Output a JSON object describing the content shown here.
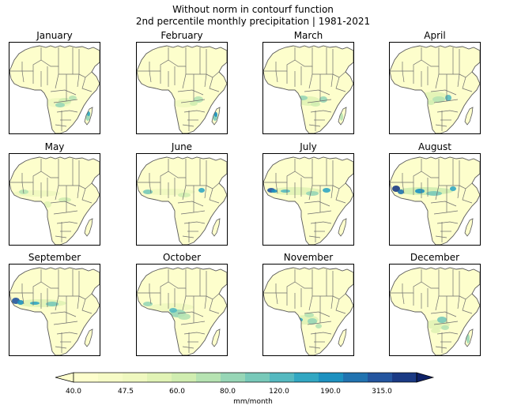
{
  "title_line1": "Without norm in contourf function",
  "title_line2": "2nd percentile monthly precipitation | 1981-2021",
  "colormap": [
    "#fdfecc",
    "#f6fbc6",
    "#eff8bf",
    "#e1f3b5",
    "#d0edb0",
    "#b6e3b2",
    "#97d6b6",
    "#78c9b9",
    "#55b9c0",
    "#32a7c2",
    "#1d91c0",
    "#2173b0",
    "#24559f",
    "#1a3a84",
    "#0e2167"
  ],
  "months": [
    {
      "name": "January"
    },
    {
      "name": "February"
    },
    {
      "name": "March"
    },
    {
      "name": "April"
    },
    {
      "name": "May"
    },
    {
      "name": "June"
    },
    {
      "name": "July"
    },
    {
      "name": "August"
    },
    {
      "name": "September"
    },
    {
      "name": "October"
    },
    {
      "name": "November"
    },
    {
      "name": "December"
    }
  ],
  "colorbar": {
    "ticks": [
      "40.0",
      "47.5",
      "60.0",
      "80.0",
      "120.0",
      "190.0",
      "315.0"
    ],
    "label": "mm/month"
  }
}
